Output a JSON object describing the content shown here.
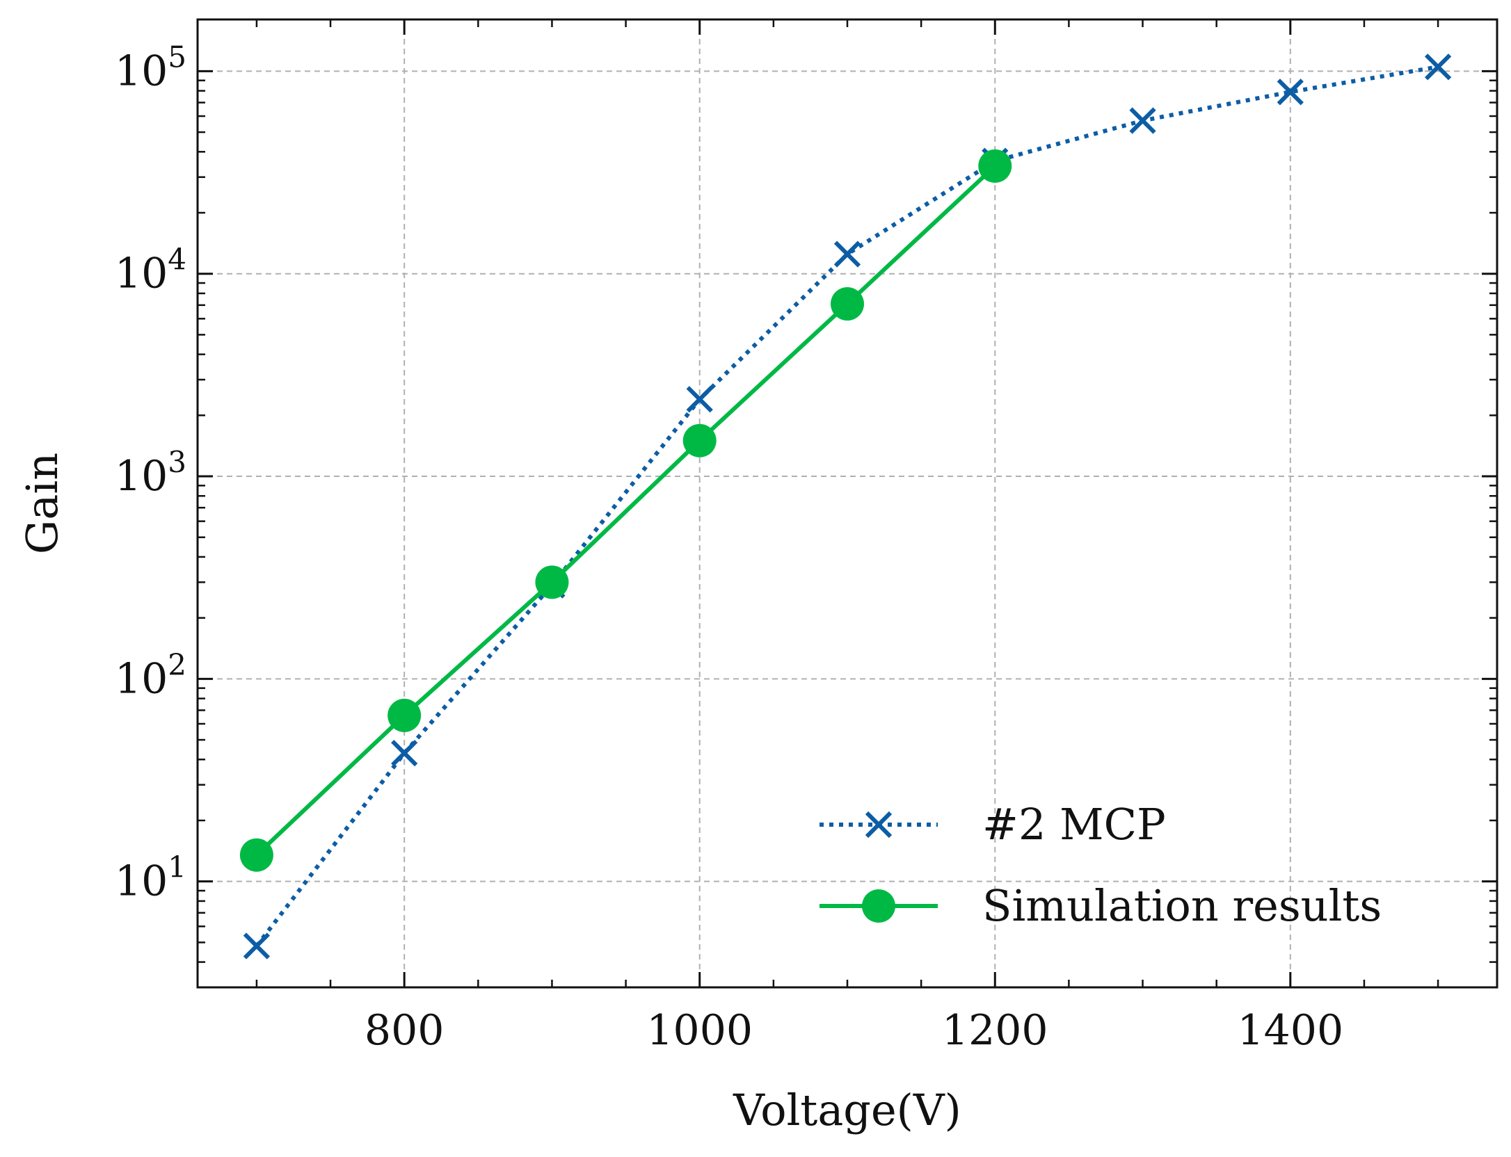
{
  "chart_data": {
    "type": "line",
    "title": "",
    "xlabel": "Voltage(V)",
    "ylabel": "Gain",
    "x_scale": "linear",
    "y_scale": "log",
    "xlim": [
      660,
      1540
    ],
    "ylim": [
      3,
      180000
    ],
    "x_ticks": [
      800,
      1000,
      1200,
      1400
    ],
    "x_tick_labels": [
      "800",
      "1000",
      "1200",
      "1400"
    ],
    "y_ticks": [
      10,
      100,
      1000,
      10000,
      100000
    ],
    "y_tick_labels": [
      {
        "base": "10",
        "exp": "1"
      },
      {
        "base": "10",
        "exp": "2"
      },
      {
        "base": "10",
        "exp": "3"
      },
      {
        "base": "10",
        "exp": "4"
      },
      {
        "base": "10",
        "exp": "5"
      }
    ],
    "grid": true,
    "legend_position": "bottom-right",
    "series": [
      {
        "name": "#2 MCP",
        "color": "#0c5da5",
        "line_style": "dotted",
        "marker": "x",
        "x": [
          700,
          800,
          900,
          1000,
          1100,
          1200,
          1300,
          1400,
          1500
        ],
        "y": [
          4.8,
          43,
          290,
          2400,
          12500,
          36000,
          57000,
          79000,
          105000
        ]
      },
      {
        "name": "Simulation results",
        "color": "#00b945",
        "line_style": "solid",
        "marker": "circle",
        "x": [
          700,
          800,
          900,
          1000,
          1100,
          1200
        ],
        "y": [
          13.5,
          66,
          300,
          1500,
          7100,
          34000
        ]
      }
    ]
  }
}
